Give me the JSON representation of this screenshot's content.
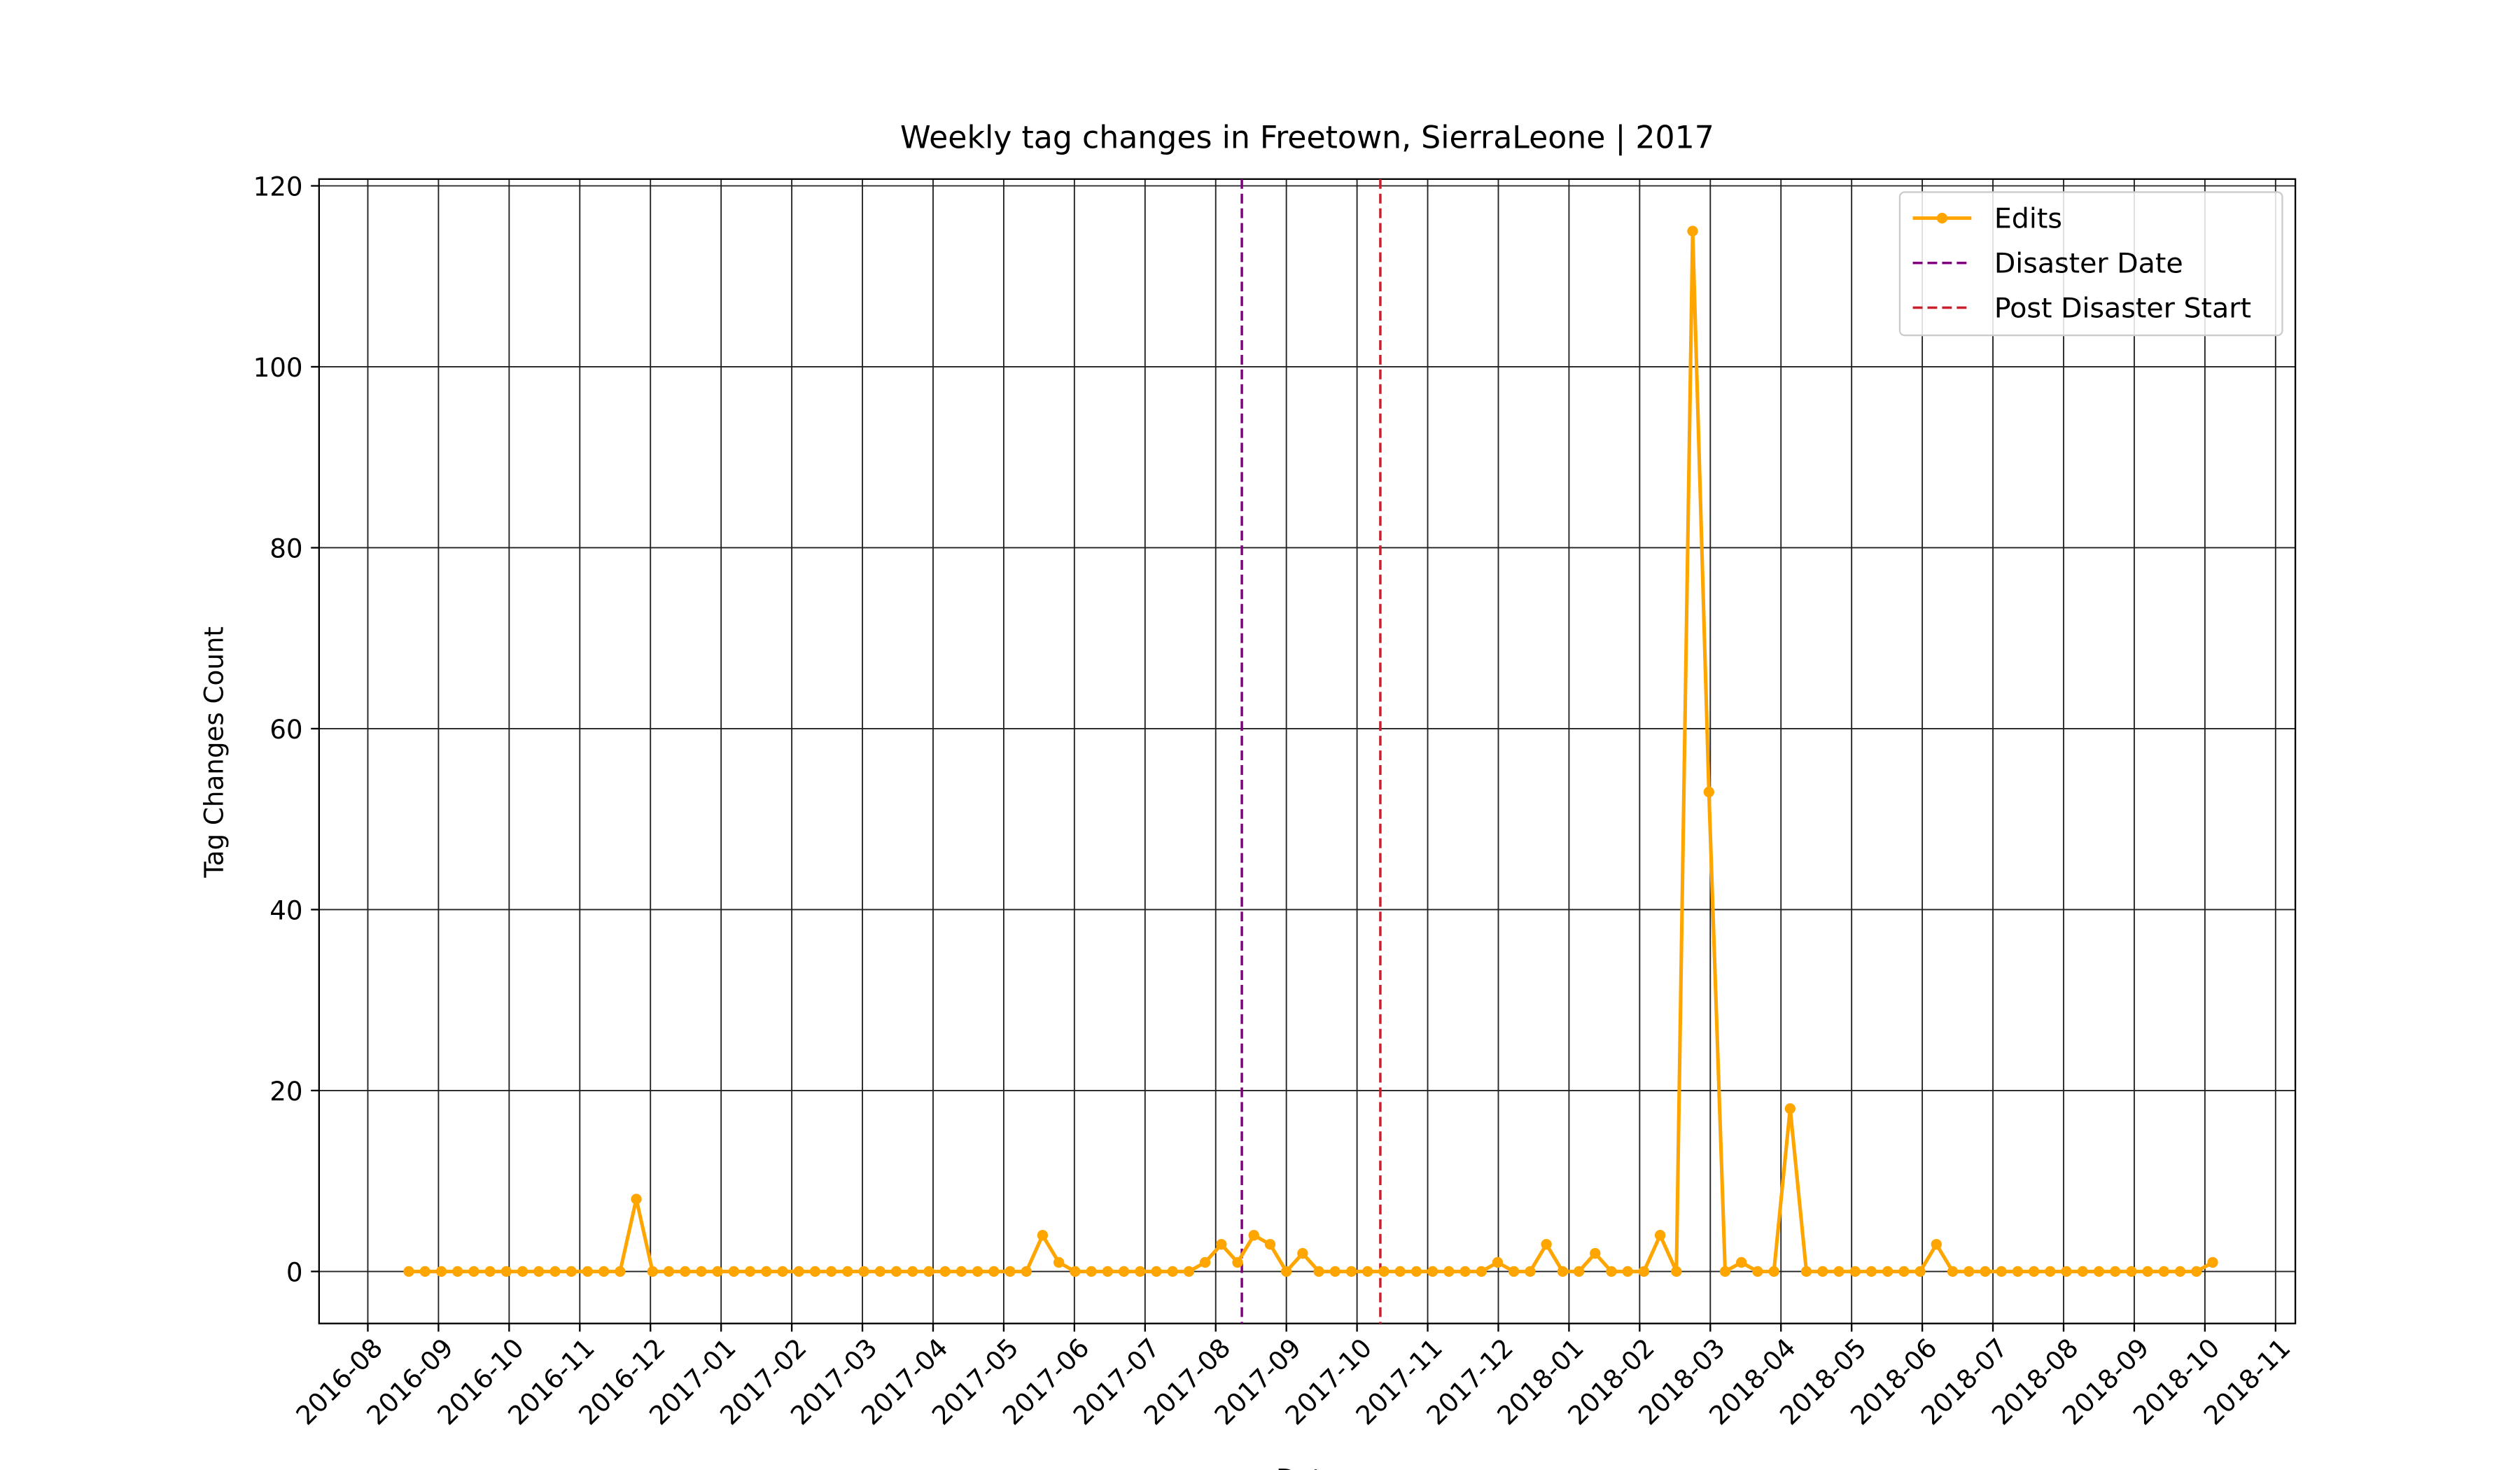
{
  "chart_data": {
    "type": "line",
    "title": "Weekly tag changes in Freetown, SierraLeone | 2017",
    "x_label": "Date",
    "y_label": "Tag Changes Count",
    "x": [
      0.58,
      0.81,
      1.04,
      1.27,
      1.5,
      1.73,
      1.96,
      2.19,
      2.42,
      2.65,
      2.88,
      3.11,
      3.34,
      3.57,
      3.8,
      4.03,
      4.26,
      4.49,
      4.72,
      4.95,
      5.18,
      5.41,
      5.64,
      5.87,
      6.1,
      6.33,
      6.56,
      6.79,
      7.02,
      7.25,
      7.48,
      7.71,
      7.94,
      8.17,
      8.4,
      8.63,
      8.86,
      9.09,
      9.32,
      9.55,
      9.78,
      10.01,
      10.24,
      10.47,
      10.7,
      10.93,
      11.16,
      11.39,
      11.62,
      11.85,
      12.08,
      12.31,
      12.54,
      12.77,
      13.0,
      13.23,
      13.46,
      13.69,
      13.92,
      14.15,
      14.38,
      14.61,
      14.84,
      15.07,
      15.3,
      15.53,
      15.76,
      15.99,
      16.22,
      16.45,
      16.68,
      16.91,
      17.14,
      17.37,
      17.6,
      17.83,
      18.06,
      18.29,
      18.52,
      18.75,
      18.98,
      19.21,
      19.44,
      19.67,
      19.9,
      20.13,
      20.36,
      20.59,
      20.82,
      21.05,
      21.28,
      21.51,
      21.74,
      21.97,
      22.2,
      22.43,
      22.66,
      22.89,
      23.12,
      23.35,
      23.58,
      23.81,
      24.04,
      24.27,
      24.5,
      24.73,
      24.96,
      25.19,
      25.42,
      25.65,
      25.88,
      26.11
    ],
    "series": [
      {
        "name": "Edits",
        "color": "#ffa500",
        "values": [
          0,
          0,
          0,
          0,
          0,
          0,
          0,
          0,
          0,
          0,
          0,
          0,
          0,
          0,
          8,
          0,
          0,
          0,
          0,
          0,
          0,
          0,
          0,
          0,
          0,
          0,
          0,
          0,
          0,
          0,
          0,
          0,
          0,
          0,
          0,
          0,
          0,
          0,
          0,
          4,
          1,
          0,
          0,
          0,
          0,
          0,
          0,
          0,
          0,
          1,
          3,
          1,
          4,
          3,
          0,
          2,
          0,
          0,
          0,
          0,
          0,
          0,
          0,
          0,
          0,
          0,
          0,
          1,
          0,
          0,
          3,
          0,
          0,
          2,
          0,
          0,
          0,
          4,
          0,
          115,
          53,
          0,
          1,
          0,
          0,
          18,
          0,
          0,
          0,
          0,
          0,
          0,
          0,
          0,
          3,
          0,
          0,
          0,
          0,
          0,
          0,
          0,
          0,
          0,
          0,
          0,
          0,
          0,
          0,
          0,
          0,
          1
        ]
      }
    ],
    "vlines": [
      {
        "name": "Disaster Date",
        "color": "#800080",
        "x": 12.37
      },
      {
        "name": "Post Disaster Start",
        "color": "#c8202c",
        "x": 14.33
      }
    ],
    "xlim": [
      -0.69,
      27.28
    ],
    "xticks": [
      {
        "value": 0,
        "label": "2016-08"
      },
      {
        "value": 1,
        "label": "2016-09"
      },
      {
        "value": 2,
        "label": "2016-10"
      },
      {
        "value": 3,
        "label": "2016-11"
      },
      {
        "value": 4,
        "label": "2016-12"
      },
      {
        "value": 5,
        "label": "2017-01"
      },
      {
        "value": 6,
        "label": "2017-02"
      },
      {
        "value": 7,
        "label": "2017-03"
      },
      {
        "value": 8,
        "label": "2017-04"
      },
      {
        "value": 9,
        "label": "2017-05"
      },
      {
        "value": 10,
        "label": "2017-06"
      },
      {
        "value": 11,
        "label": "2017-07"
      },
      {
        "value": 12,
        "label": "2017-08"
      },
      {
        "value": 13,
        "label": "2017-09"
      },
      {
        "value": 14,
        "label": "2017-10"
      },
      {
        "value": 15,
        "label": "2017-11"
      },
      {
        "value": 16,
        "label": "2017-12"
      },
      {
        "value": 17,
        "label": "2018-01"
      },
      {
        "value": 18,
        "label": "2018-02"
      },
      {
        "value": 19,
        "label": "2018-03"
      },
      {
        "value": 20,
        "label": "2018-04"
      },
      {
        "value": 21,
        "label": "2018-05"
      },
      {
        "value": 22,
        "label": "2018-06"
      },
      {
        "value": 23,
        "label": "2018-07"
      },
      {
        "value": 24,
        "label": "2018-08"
      },
      {
        "value": 25,
        "label": "2018-09"
      },
      {
        "value": 26,
        "label": "2018-10"
      },
      {
        "value": 27,
        "label": "2018-11"
      }
    ],
    "ylim": [
      -5.75,
      120.75
    ],
    "yticks": [
      0,
      20,
      40,
      60,
      80,
      100,
      120
    ],
    "grid": true,
    "legend": "upper right"
  }
}
